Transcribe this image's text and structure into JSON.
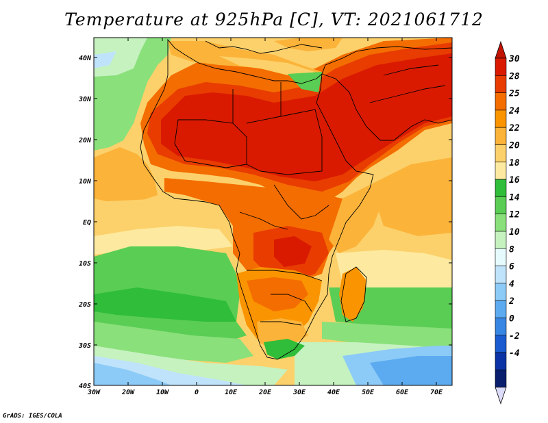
{
  "title": "Temperature at 925hPa [C], VT: 2021061712",
  "credit": "GrADS: IGES/COLA",
  "lon_ticks": [
    "30W",
    "20W",
    "10W",
    "0",
    "10E",
    "20E",
    "30E",
    "40E",
    "50E",
    "60E",
    "70E"
  ],
  "lat_ticks": [
    "40N",
    "30N",
    "20N",
    "10N",
    "EQ",
    "10S",
    "20S",
    "30S",
    "40S"
  ],
  "colorbar": {
    "labels": [
      "30",
      "28",
      "25",
      "24",
      "22",
      "20",
      "18",
      "16",
      "14",
      "12",
      "10",
      "8",
      "6",
      "4",
      "2",
      "0",
      "-2",
      "-4"
    ],
    "colors": [
      "#d91a00",
      "#e83c00",
      "#f46d00",
      "#fa9400",
      "#fbb33a",
      "#fcd16b",
      "#fdeaa0",
      "#2fbd3a",
      "#5acd54",
      "#8ae07b",
      "#c6f2c0",
      "#e5fbfd",
      "#bfe3fb",
      "#8ccbf7",
      "#5cabf0",
      "#3786e3",
      "#1a5cd0",
      "#0c33a6",
      "#0a1e6e"
    ],
    "arrow_top_color": "#c21200",
    "arrow_bottom_color": "#dcdcfa"
  }
}
